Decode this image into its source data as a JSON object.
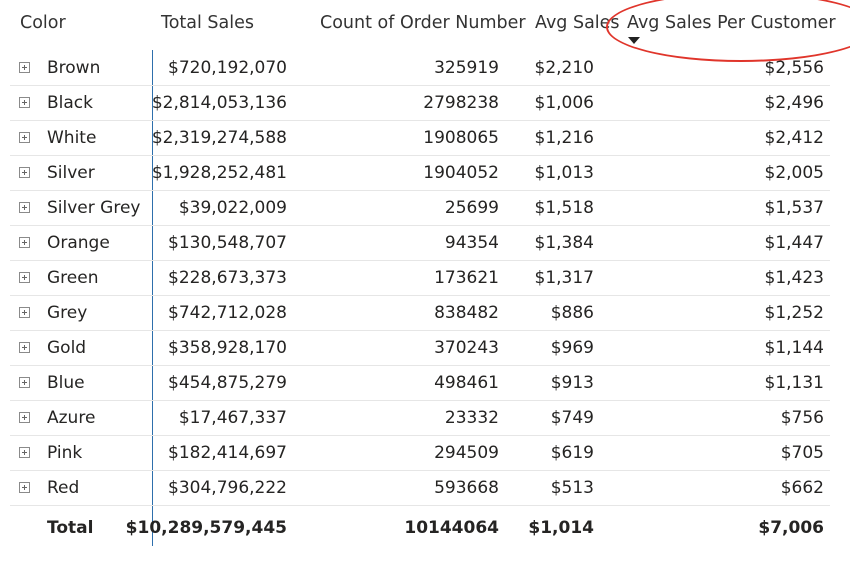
{
  "headers": {
    "color": "Color",
    "total_sales": "Total Sales",
    "count": "Count of Order Number",
    "avg_sales": "Avg Sales",
    "avg_per_customer": "Avg Sales Per Customer"
  },
  "rows": [
    {
      "color": "Brown",
      "total_sales": "$720,192,070",
      "count": "325919",
      "avg_sales": "$2,210",
      "avg_per_customer": "$2,556"
    },
    {
      "color": "Black",
      "total_sales": "$2,814,053,136",
      "count": "2798238",
      "avg_sales": "$1,006",
      "avg_per_customer": "$2,496"
    },
    {
      "color": "White",
      "total_sales": "$2,319,274,588",
      "count": "1908065",
      "avg_sales": "$1,216",
      "avg_per_customer": "$2,412"
    },
    {
      "color": "Silver",
      "total_sales": "$1,928,252,481",
      "count": "1904052",
      "avg_sales": "$1,013",
      "avg_per_customer": "$2,005"
    },
    {
      "color": "Silver Grey",
      "total_sales": "$39,022,009",
      "count": "25699",
      "avg_sales": "$1,518",
      "avg_per_customer": "$1,537"
    },
    {
      "color": "Orange",
      "total_sales": "$130,548,707",
      "count": "94354",
      "avg_sales": "$1,384",
      "avg_per_customer": "$1,447"
    },
    {
      "color": "Green",
      "total_sales": "$228,673,373",
      "count": "173621",
      "avg_sales": "$1,317",
      "avg_per_customer": "$1,423"
    },
    {
      "color": "Grey",
      "total_sales": "$742,712,028",
      "count": "838482",
      "avg_sales": "$886",
      "avg_per_customer": "$1,252"
    },
    {
      "color": "Gold",
      "total_sales": "$358,928,170",
      "count": "370243",
      "avg_sales": "$969",
      "avg_per_customer": "$1,144"
    },
    {
      "color": "Blue",
      "total_sales": "$454,875,279",
      "count": "498461",
      "avg_sales": "$913",
      "avg_per_customer": "$1,131"
    },
    {
      "color": "Azure",
      "total_sales": "$17,467,337",
      "count": "23332",
      "avg_sales": "$749",
      "avg_per_customer": "$756"
    },
    {
      "color": "Pink",
      "total_sales": "$182,414,697",
      "count": "294509",
      "avg_sales": "$619",
      "avg_per_customer": "$705"
    },
    {
      "color": "Red",
      "total_sales": "$304,796,222",
      "count": "593668",
      "avg_sales": "$513",
      "avg_per_customer": "$662"
    }
  ],
  "total": {
    "label": "Total",
    "total_sales": "$10,289,579,445",
    "count": "10144064",
    "avg_sales": "$1,014",
    "avg_per_customer": "$7,006"
  },
  "sort": {
    "column": "avg_per_customer",
    "direction": "descending",
    "icon": "sort-descending-icon"
  },
  "annotation": {
    "shape": "ellipse",
    "color": "#e0352b",
    "target": "avg_per_customer header"
  },
  "colors": {
    "row_separator": "#e6e6e6",
    "column_divider": "#2e6fac",
    "text": "#252423"
  }
}
